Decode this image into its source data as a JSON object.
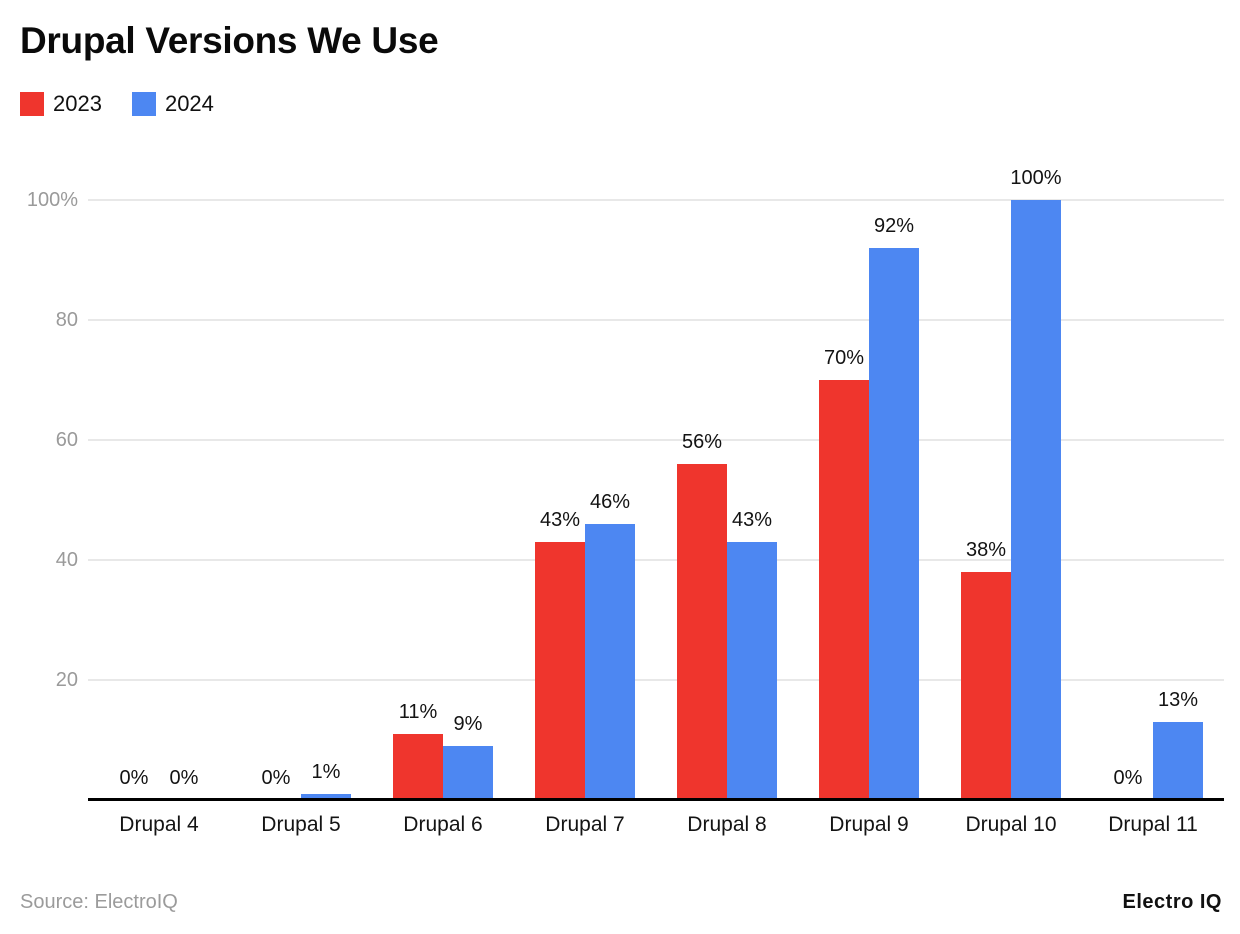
{
  "title": "Drupal Versions We Use",
  "legend": {
    "items": [
      {
        "label": "2023",
        "color": "#ef352d"
      },
      {
        "label": "2024",
        "color": "#4d87f2"
      }
    ]
  },
  "footer": {
    "source": "Source: ElectroIQ",
    "brand": "Electro IQ"
  },
  "colors": {
    "series_2023": "#ef352d",
    "series_2024": "#4d87f2",
    "gridline": "#e8e8e8",
    "axis": "#000000",
    "y_tick_label": "#9a9a9a",
    "value_label": "#131313"
  },
  "chart_data": {
    "type": "bar",
    "title": "Drupal Versions We Use",
    "categories": [
      "Drupal 4",
      "Drupal 5",
      "Drupal 6",
      "Drupal 7",
      "Drupal 8",
      "Drupal 9",
      "Drupal 10",
      "Drupal 11"
    ],
    "series": [
      {
        "name": "2023",
        "color": "#ef352d",
        "values": [
          0,
          0,
          11,
          43,
          56,
          70,
          38,
          0
        ]
      },
      {
        "name": "2024",
        "color": "#4d87f2",
        "values": [
          0,
          1,
          9,
          46,
          43,
          92,
          100,
          13
        ]
      }
    ],
    "value_label_suffix": "%",
    "xlabel": "",
    "ylabel": "",
    "ylim": [
      0,
      100
    ],
    "y_ticks": [
      {
        "value": 20,
        "label": "20"
      },
      {
        "value": 40,
        "label": "40"
      },
      {
        "value": 60,
        "label": "60"
      },
      {
        "value": 80,
        "label": "80"
      },
      {
        "value": 100,
        "label": "100%"
      }
    ],
    "grid": true,
    "legend_position": "top-left"
  }
}
